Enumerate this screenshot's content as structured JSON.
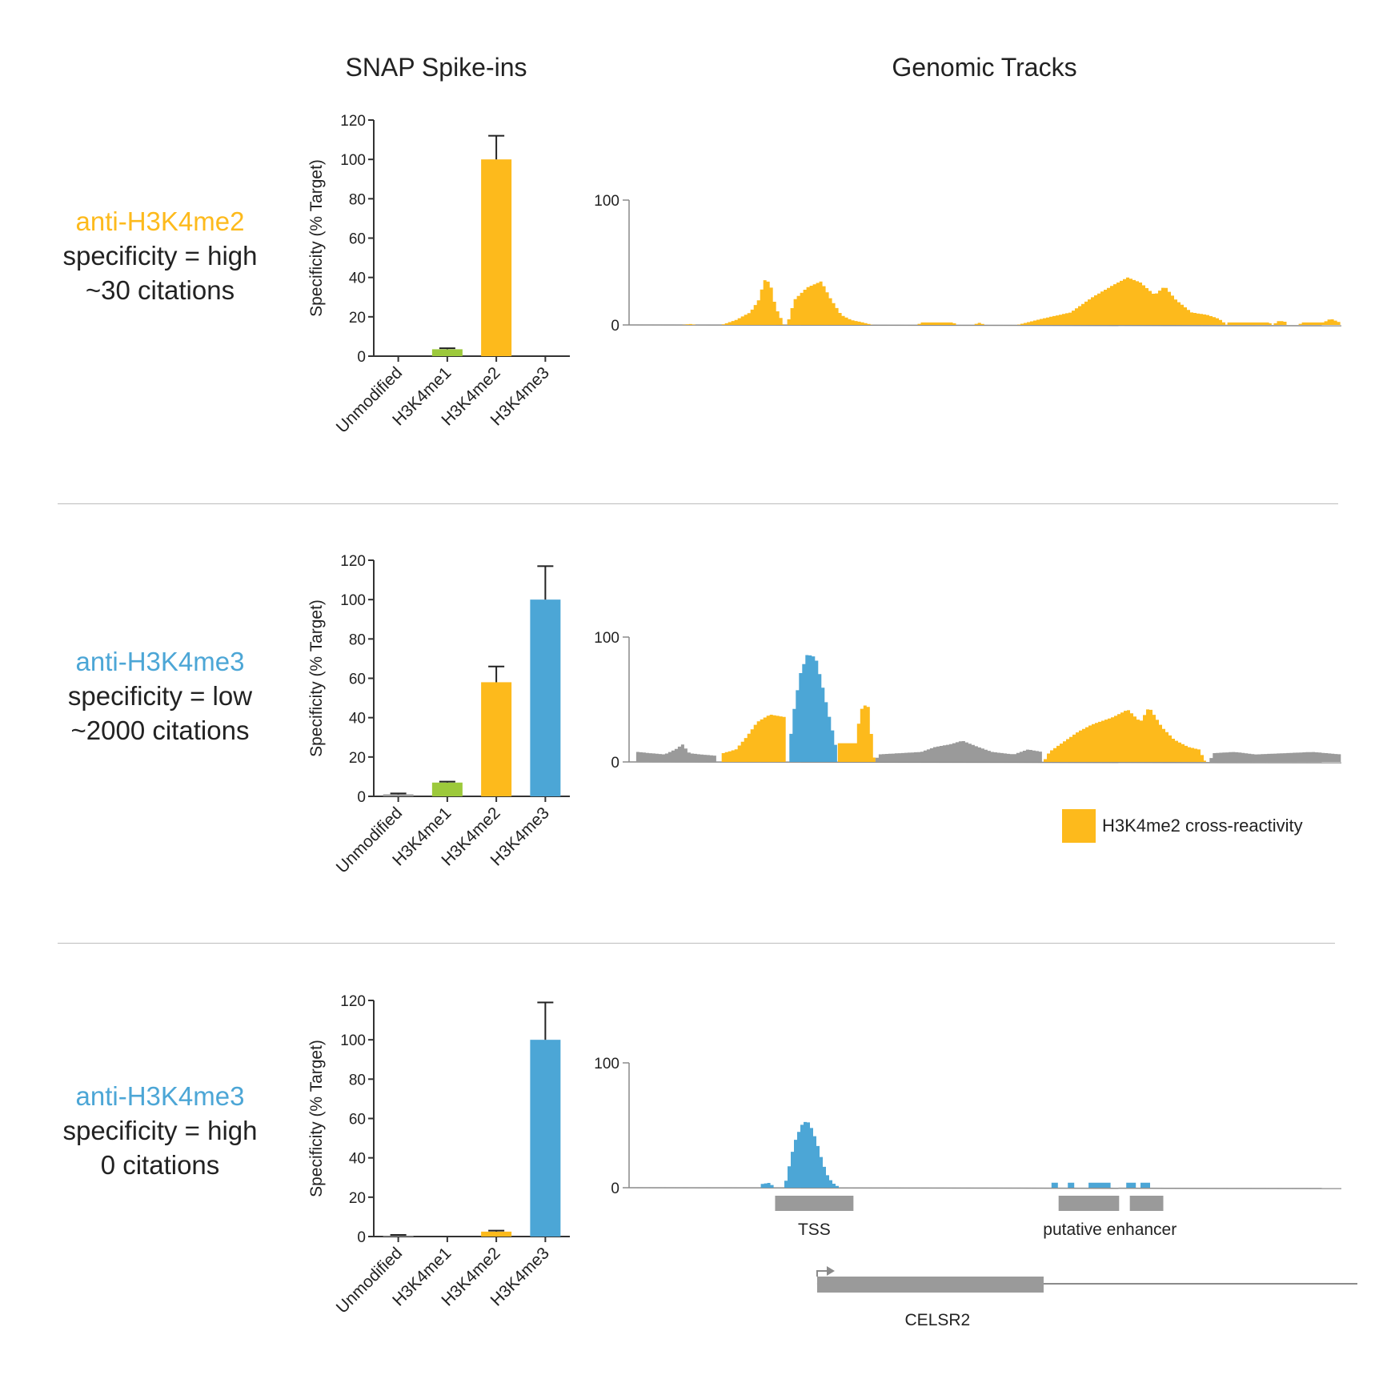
{
  "headers": {
    "left": "SNAP Spike-ins",
    "right": "Genomic Tracks"
  },
  "colors": {
    "orange": "#FDBA1C",
    "green": "#9CC93B",
    "blue": "#4CA6D6",
    "gray": "#9A9A9A",
    "axis": "#333333"
  },
  "rows": [
    {
      "name": "anti-H3K4me2",
      "name_color": "#FDBA1C",
      "line2": "specificity = high",
      "line3": "~30 citations"
    },
    {
      "name": "anti-H3K4me3",
      "name_color": "#4CA6D6",
      "line2": "specificity = low",
      "line3": "~2000 citations"
    },
    {
      "name": "anti-H3K4me3",
      "name_color": "#4CA6D6",
      "line2": "specificity = high",
      "line3": "0 citations"
    }
  ],
  "legend": {
    "label": "H3K4me2 cross-reactivity",
    "color": "#FDBA1C"
  },
  "annotations": {
    "tss": "TSS",
    "enhancer": "putative enhancer",
    "gene": "CELSR2"
  },
  "chart_data": [
    {
      "type": "bar",
      "title": "SNAP Spike-ins",
      "ylabel": "Specificity (% Target)",
      "ylim": [
        0,
        120
      ],
      "yticks": [
        "0",
        "20",
        "40",
        "60",
        "80",
        "100",
        "120"
      ],
      "categories": [
        "Unmodified",
        "H3K4me1",
        "H3K4me2",
        "H3K4me3"
      ],
      "values": [
        0,
        3.5,
        100,
        0
      ],
      "errors": [
        0,
        0.5,
        12,
        0
      ],
      "colors": [
        "#9A9A9A",
        "#9CC93B",
        "#FDBA1C",
        "#4CA6D6"
      ]
    },
    {
      "type": "bar",
      "title": "SNAP Spike-ins",
      "ylabel": "Specificity (% Target)",
      "ylim": [
        0,
        120
      ],
      "yticks": [
        "0",
        "20",
        "40",
        "60",
        "80",
        "100",
        "120"
      ],
      "categories": [
        "Unmodified",
        "H3K4me1",
        "H3K4me2",
        "H3K4me3"
      ],
      "values": [
        1,
        7,
        58,
        100
      ],
      "errors": [
        0.5,
        0.5,
        8,
        17
      ],
      "colors": [
        "#9A9A9A",
        "#9CC93B",
        "#FDBA1C",
        "#4CA6D6"
      ]
    },
    {
      "type": "bar",
      "title": "SNAP Spike-ins",
      "ylabel": "Specificity (% Target)",
      "ylim": [
        0,
        120
      ],
      "yticks": [
        "0",
        "20",
        "40",
        "60",
        "80",
        "100",
        "120"
      ],
      "categories": [
        "Unmodified",
        "H3K4me1",
        "H3K4me2",
        "H3K4me3"
      ],
      "values": [
        0.5,
        0,
        2.5,
        100
      ],
      "errors": [
        0.3,
        0,
        0.5,
        19
      ],
      "colors": [
        "#9A9A9A",
        "#9CC93B",
        "#FDBA1C",
        "#4CA6D6"
      ]
    },
    {
      "type": "area",
      "title": "Genomic Tracks",
      "yticks": [
        "0",
        "100"
      ],
      "ylim": [
        0,
        100
      ],
      "x_range": [
        0,
        1000
      ],
      "segments": [
        {
          "color": "#FDBA1C",
          "profile": [
            [
              75,
              0
            ],
            [
              85,
              0.8
            ],
            [
              95,
              0
            ]
          ]
        },
        {
          "color": "#FDBA1C",
          "profile": [
            [
              130,
              0
            ],
            [
              150,
              4
            ],
            [
              170,
              10
            ],
            [
              182,
              20
            ],
            [
              190,
              36
            ],
            [
              198,
              34
            ],
            [
              206,
              14
            ],
            [
              218,
              0
            ]
          ]
        },
        {
          "color": "#FDBA1C",
          "profile": [
            [
              222,
              0
            ],
            [
              232,
              20
            ],
            [
              250,
              30
            ],
            [
              270,
              35
            ],
            [
              282,
              22
            ],
            [
              298,
              8
            ],
            [
              312,
              4
            ],
            [
              328,
              2
            ],
            [
              342,
              0
            ]
          ]
        },
        {
          "color": "#FDBA1C",
          "profile": [
            [
              405,
              0
            ],
            [
              410,
              2
            ],
            [
              455,
              2
            ],
            [
              460,
              0
            ]
          ]
        },
        {
          "color": "#FDBA1C",
          "profile": [
            [
              485,
              0
            ],
            [
              490,
              2
            ],
            [
              500,
              0
            ]
          ]
        },
        {
          "color": "#FDBA1C",
          "profile": [
            [
              545,
              0
            ],
            [
              580,
              5
            ],
            [
              620,
              10
            ],
            [
              650,
              22
            ],
            [
              680,
              32
            ],
            [
              700,
              38
            ],
            [
              718,
              34
            ],
            [
              738,
              24
            ],
            [
              752,
              31
            ],
            [
              768,
              20
            ],
            [
              790,
              10
            ],
            [
              812,
              8
            ],
            [
              828,
              5
            ],
            [
              840,
              0
            ]
          ]
        },
        {
          "color": "#FDBA1C",
          "profile": [
            [
              840,
              0
            ],
            [
              842,
              2
            ],
            [
              900,
              2
            ],
            [
              902,
              0
            ]
          ]
        },
        {
          "color": "#FDBA1C",
          "profile": [
            [
              905,
              0
            ],
            [
              910,
              3
            ],
            [
              920,
              3
            ],
            [
              925,
              0
            ]
          ]
        },
        {
          "color": "#FDBA1C",
          "profile": [
            [
              940,
              0
            ],
            [
              945,
              2
            ],
            [
              975,
              2
            ],
            [
              985,
              5
            ],
            [
              998,
              2
            ],
            [
              1000,
              0
            ]
          ]
        }
      ]
    },
    {
      "type": "area",
      "title": "Genomic Tracks",
      "yticks": [
        "0",
        "100"
      ],
      "ylim": [
        0,
        100
      ],
      "x_range": [
        0,
        1000
      ],
      "segments": [
        {
          "color": "#9A9A9A",
          "profile": [
            [
              10,
              0
            ],
            [
              12,
              8
            ],
            [
              30,
              7
            ],
            [
              50,
              6
            ],
            [
              65,
              10
            ],
            [
              75,
              14
            ],
            [
              85,
              7
            ],
            [
              100,
              6
            ],
            [
              122,
              5
            ],
            [
              124,
              0
            ]
          ]
        },
        {
          "color": "#FDBA1C",
          "profile": [
            [
              130,
              0
            ],
            [
              132,
              7
            ],
            [
              150,
              10
            ],
            [
              165,
              20
            ],
            [
              180,
              32
            ],
            [
              198,
              38
            ],
            [
              218,
              36
            ],
            [
              220,
              0
            ]
          ]
        },
        {
          "color": "#4CA6D6",
          "profile": [
            [
              225,
              0
            ],
            [
              228,
              30
            ],
            [
              240,
              70
            ],
            [
              250,
              86
            ],
            [
              262,
              84
            ],
            [
              272,
              60
            ],
            [
              282,
              34
            ],
            [
              290,
              15
            ],
            [
              292,
              0
            ]
          ]
        },
        {
          "color": "#FDBA1C",
          "profile": [
            [
              293,
              0
            ],
            [
              295,
              15
            ],
            [
              318,
              15
            ],
            [
              322,
              30
            ],
            [
              328,
              46
            ],
            [
              336,
              44
            ],
            [
              343,
              8
            ],
            [
              346,
              0
            ]
          ]
        },
        {
          "color": "#9A9A9A",
          "profile": [
            [
              346,
              0
            ],
            [
              350,
              6
            ],
            [
              380,
              7
            ],
            [
              410,
              8
            ],
            [
              430,
              12
            ],
            [
              450,
              14
            ],
            [
              468,
              17
            ],
            [
              490,
              12
            ],
            [
              510,
              8
            ],
            [
              540,
              6
            ],
            [
              560,
              10
            ],
            [
              580,
              8
            ],
            [
              582,
              0
            ]
          ]
        },
        {
          "color": "#FDBA1C",
          "profile": [
            [
              582,
              0
            ],
            [
              590,
              8
            ],
            [
              610,
              16
            ],
            [
              630,
              24
            ],
            [
              650,
              30
            ],
            [
              680,
              36
            ],
            [
              700,
              42
            ],
            [
              718,
              32
            ],
            [
              730,
              44
            ],
            [
              748,
              28
            ],
            [
              765,
              18
            ],
            [
              785,
              12
            ],
            [
              800,
              10
            ],
            [
              810,
              0
            ]
          ]
        },
        {
          "color": "#9A9A9A",
          "profile": [
            [
              815,
              0
            ],
            [
              820,
              7
            ],
            [
              850,
              8
            ],
            [
              880,
              6
            ],
            [
              920,
              7
            ],
            [
              960,
              8
            ],
            [
              1000,
              6
            ],
            [
              1000,
              0
            ]
          ]
        }
      ]
    },
    {
      "type": "area",
      "title": "Genomic Tracks",
      "yticks": [
        "0",
        "100"
      ],
      "ylim": [
        0,
        100
      ],
      "x_range": [
        0,
        1000
      ],
      "segments": [
        {
          "color": "#4CA6D6",
          "profile": [
            [
              185,
              0
            ],
            [
              187,
              3
            ],
            [
              198,
              4
            ],
            [
              204,
              0
            ]
          ]
        },
        {
          "color": "#4CA6D6",
          "profile": [
            [
              218,
              0
            ],
            [
              222,
              10
            ],
            [
              232,
              36
            ],
            [
              242,
              50
            ],
            [
              250,
              54
            ],
            [
              258,
              46
            ],
            [
              266,
              32
            ],
            [
              272,
              20
            ],
            [
              280,
              8
            ],
            [
              288,
              3
            ],
            [
              296,
              0
            ]
          ]
        },
        {
          "color": "#4CA6D6",
          "profile": [
            [
              593,
              0
            ],
            [
              594,
              4
            ],
            [
              603,
              4
            ],
            [
              604,
              0
            ]
          ]
        },
        {
          "color": "#4CA6D6",
          "profile": [
            [
              616,
              0
            ],
            [
              617,
              4
            ],
            [
              625,
              4
            ],
            [
              626,
              0
            ]
          ]
        },
        {
          "color": "#4CA6D6",
          "profile": [
            [
              645,
              0
            ],
            [
              646,
              4
            ],
            [
              675,
              4
            ],
            [
              676,
              0
            ]
          ]
        },
        {
          "color": "#4CA6D6",
          "profile": [
            [
              698,
              0
            ],
            [
              699,
              4
            ],
            [
              711,
              4
            ],
            [
              712,
              0
            ]
          ]
        },
        {
          "color": "#4CA6D6",
          "profile": [
            [
              718,
              0
            ],
            [
              719,
              4
            ],
            [
              731,
              4
            ],
            [
              732,
              0
            ]
          ]
        }
      ]
    }
  ]
}
